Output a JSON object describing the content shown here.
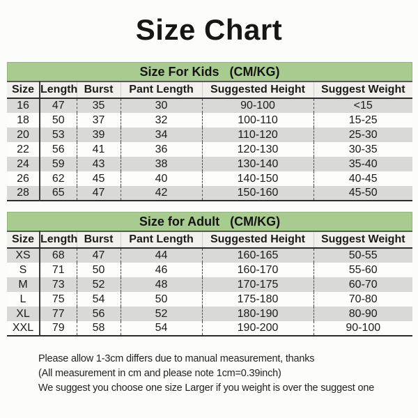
{
  "title": "Size Chart",
  "columns": [
    "Size",
    "Length",
    "Burst",
    "Pant Length",
    "Suggested Height",
    "Suggest Weight"
  ],
  "kids": {
    "banner": "Size For Kids   (CM/KG)",
    "rows": [
      [
        "16",
        "47",
        "35",
        "30",
        "90-100",
        "<15"
      ],
      [
        "18",
        "50",
        "37",
        "32",
        "100-110",
        "15-25"
      ],
      [
        "20",
        "53",
        "39",
        "34",
        "110-120",
        "25-30"
      ],
      [
        "22",
        "56",
        "41",
        "36",
        "120-130",
        "30-35"
      ],
      [
        "24",
        "59",
        "43",
        "38",
        "130-140",
        "35-40"
      ],
      [
        "26",
        "62",
        "45",
        "40",
        "140-150",
        "40-45"
      ],
      [
        "28",
        "65",
        "47",
        "42",
        "150-160",
        "45-50"
      ]
    ]
  },
  "adult": {
    "banner": "Size for Adult   (CM/KG)",
    "rows": [
      [
        "XS",
        "68",
        "47",
        "44",
        "160-165",
        "50-55"
      ],
      [
        "S",
        "71",
        "50",
        "46",
        "160-170",
        "55-60"
      ],
      [
        "M",
        "73",
        "52",
        "48",
        "170-175",
        "60-70"
      ],
      [
        "L",
        "75",
        "54",
        "50",
        "175-180",
        "70-80"
      ],
      [
        "XL",
        "77",
        "56",
        "52",
        "180-190",
        "80-90"
      ],
      [
        "XXL",
        "79",
        "58",
        "54",
        "190-200",
        "90-100"
      ]
    ]
  },
  "notes": [
    "Please allow 1-3cm differs due to manual measurement, thanks",
    "(All measurement in cm and please note 1cm=0.39inch)",
    "We suggest you choose one size Larger if you weight is over the suggest one"
  ],
  "colors": {
    "banner_green": "#a8cc8f",
    "row_stripe_gray": "#d9d9d7",
    "header_bg": "#f1f0ec",
    "border_dark": "#2b2b2b",
    "text": "#1b1b1b"
  }
}
